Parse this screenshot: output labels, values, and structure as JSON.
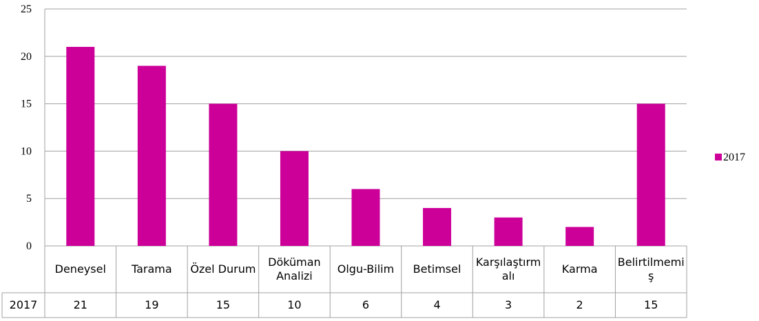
{
  "chart_data": {
    "type": "bar",
    "categories": [
      "Deneysel",
      "Tarama",
      "Özel Durum",
      "Döküman Analizi",
      "Olgu-Bilim",
      "Betimsel",
      "Karşılaştırmalı",
      "Karma",
      "Belirtilmemiş"
    ],
    "series": [
      {
        "name": "2017",
        "color": "#cc0099",
        "values": [
          21,
          19,
          15,
          10,
          6,
          4,
          3,
          2,
          15
        ]
      }
    ],
    "ylim": [
      0,
      25
    ],
    "yticks": [
      0,
      5,
      10,
      15,
      20,
      25
    ],
    "grid": true,
    "legend": "right"
  }
}
